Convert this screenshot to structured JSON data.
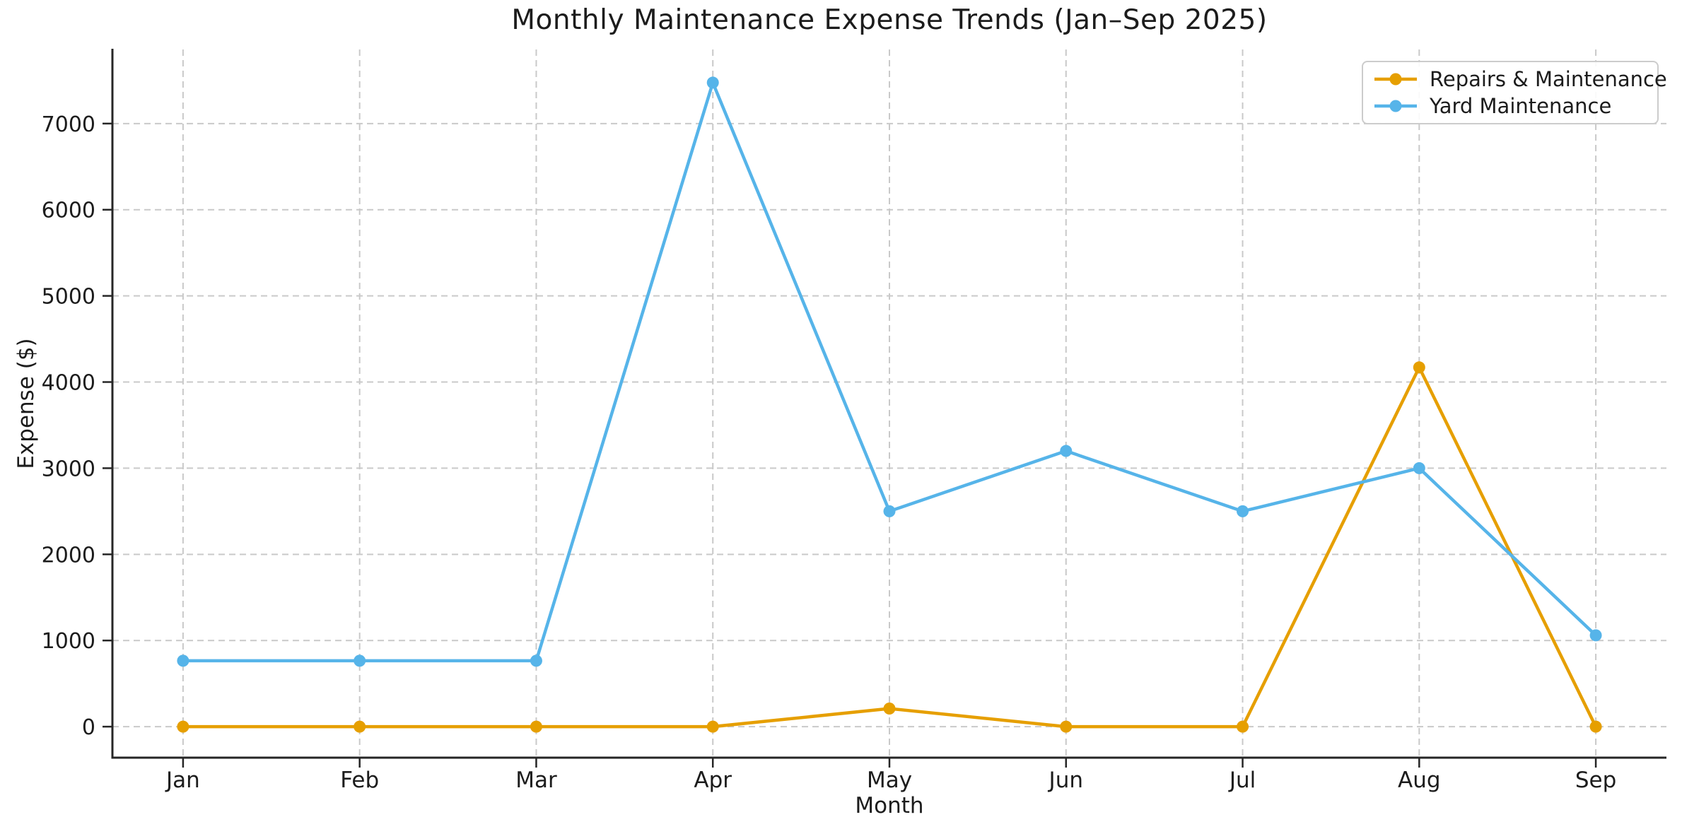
{
  "chart_data": {
    "type": "line",
    "title": "Monthly Maintenance Expense Trends (Jan–Sep 2025)",
    "xlabel": "Month",
    "ylabel": "Expense ($)",
    "categories": [
      "Jan",
      "Feb",
      "Mar",
      "Apr",
      "May",
      "Jun",
      "Jul",
      "Aug",
      "Sep"
    ],
    "series": [
      {
        "name": "Repairs & Maintenance",
        "color": "#E69F00",
        "values": [
          0,
          0,
          0,
          0,
          210,
          0,
          0,
          4170,
          0
        ]
      },
      {
        "name": "Yard Maintenance",
        "color": "#56B4E9",
        "values": [
          765,
          765,
          765,
          7475,
          2500,
          3200,
          2500,
          3000,
          1060
        ]
      }
    ],
    "yticks": [
      0,
      1000,
      2000,
      3000,
      4000,
      5000,
      6000,
      7000
    ],
    "ylim": [
      -360,
      7860
    ],
    "xlim": [
      -0.4,
      8.4
    ],
    "grid": true,
    "grid_style": "dashed",
    "legend_position": "top-right",
    "style": {
      "grid_color": "#c9c9c9",
      "spine_color": "#262626",
      "text_color": "#1c1c1c",
      "background": "#ffffff"
    }
  }
}
